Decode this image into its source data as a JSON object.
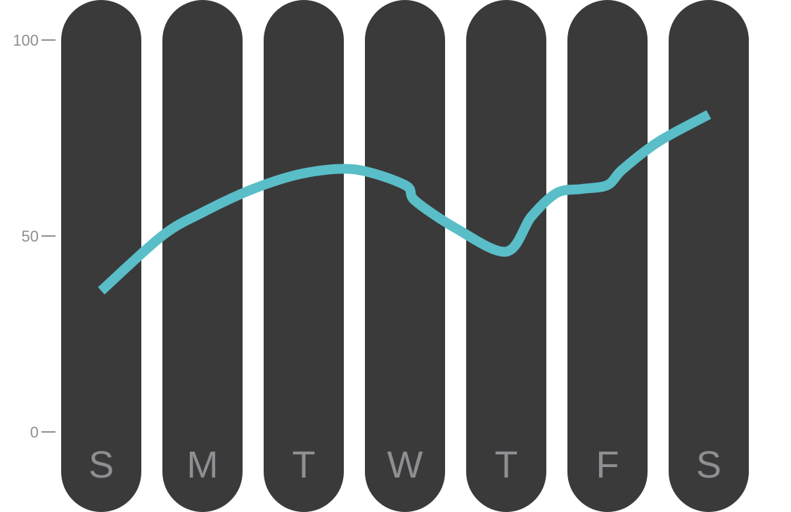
{
  "chart_data": {
    "type": "line",
    "title": "",
    "xlabel": "",
    "ylabel": "",
    "ylim": [
      0,
      100
    ],
    "yticks": [
      0,
      50,
      100
    ],
    "ytick_labels": [
      "0",
      "50",
      "100"
    ],
    "categories": [
      "S",
      "M",
      "T",
      "W",
      "T",
      "F",
      "S"
    ],
    "series": [
      {
        "name": "",
        "x": [
          0,
          0.6,
          1,
          1.5,
          2,
          2.5,
          3,
          3.1,
          3.5,
          4,
          4.25,
          4.5,
          4.75,
          5,
          5.15,
          5.5,
          6
        ],
        "values": [
          36,
          50,
          56,
          62,
          66,
          67,
          63,
          59,
          52,
          46,
          55,
          61,
          62,
          63,
          67,
          74,
          81
        ]
      }
    ],
    "grid": false,
    "legend": "none",
    "colors": {
      "column": "#3a3a3a",
      "line": "#59bec8",
      "label": "#8e8e93"
    }
  }
}
